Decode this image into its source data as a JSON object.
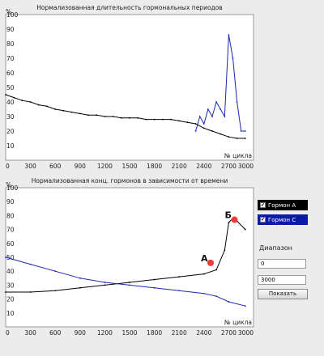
{
  "colors": {
    "series_a": "#000000",
    "series_c": "#1a28b0",
    "marker": "#ef3b3b"
  },
  "controls": {
    "legend_a": "Гормон А",
    "legend_c": "Гормон С",
    "range_label": "Диапазон",
    "range_from": "0",
    "range_to": "3000",
    "show_button": "Показать"
  },
  "chart_data": [
    {
      "type": "line",
      "title": "Нормализованная длительность гормональных периодов",
      "ylabel": "%",
      "xlabel": "№ цикла",
      "xlim": [
        0,
        3000
      ],
      "ylim": [
        0,
        100
      ],
      "xticks": [
        0,
        300,
        600,
        900,
        1200,
        1500,
        1800,
        2100,
        2400,
        2700,
        3000
      ],
      "yticks": [
        10,
        20,
        30,
        40,
        50,
        60,
        70,
        80,
        90,
        100
      ],
      "grid": false,
      "series": [
        {
          "x": [
            0,
            100,
            200,
            300,
            400,
            500,
            600,
            700,
            800,
            900,
            1000,
            1100,
            1200,
            1300,
            1400,
            1500,
            1600,
            1700,
            1800,
            1900,
            2000,
            2100,
            2200,
            2300,
            2400,
            2500,
            2600,
            2700,
            2800,
            2900
          ],
          "values": [
            45,
            43,
            41,
            40,
            38,
            37,
            35,
            34,
            33,
            32,
            31,
            31,
            30,
            30,
            29,
            29,
            29,
            28,
            28,
            28,
            28,
            27,
            26,
            25,
            22,
            20,
            18,
            16,
            15,
            15
          ]
        },
        {
          "x": [
            2300,
            2350,
            2400,
            2450,
            2500,
            2550,
            2600,
            2650,
            2700,
            2750,
            2800,
            2850,
            2900
          ],
          "values": [
            20,
            30,
            25,
            35,
            30,
            40,
            35,
            30,
            86,
            70,
            40,
            20,
            20
          ]
        }
      ]
    },
    {
      "type": "line",
      "title": "Нормализованная конц. гормонов в зависимости от времени",
      "ylabel": "%",
      "xlabel": "№ цикла",
      "xlim": [
        0,
        3000
      ],
      "ylim": [
        0,
        100
      ],
      "xticks": [
        0,
        300,
        600,
        900,
        1200,
        1500,
        1800,
        2100,
        2400,
        2700,
        3000
      ],
      "yticks": [
        10,
        20,
        30,
        40,
        50,
        60,
        70,
        80,
        90,
        100
      ],
      "grid": false,
      "series": [
        {
          "name": "Гормон А",
          "x": [
            0,
            300,
            600,
            900,
            1200,
            1500,
            1800,
            2100,
            2400,
            2550,
            2650,
            2700,
            2750,
            2800,
            2900
          ],
          "values": [
            25,
            25,
            26,
            28,
            30,
            32,
            34,
            36,
            38,
            41,
            55,
            75,
            78,
            76,
            70
          ]
        },
        {
          "name": "Гормон С",
          "x": [
            0,
            300,
            600,
            900,
            1200,
            1500,
            1800,
            2100,
            2400,
            2550,
            2700,
            2900
          ],
          "values": [
            50,
            45,
            40,
            35,
            32,
            30,
            28,
            26,
            24,
            22,
            18,
            15
          ]
        }
      ],
      "annotations": [
        {
          "label": "А",
          "x": 2480,
          "y": 46
        },
        {
          "label": "Б",
          "x": 2770,
          "y": 77
        }
      ]
    }
  ]
}
